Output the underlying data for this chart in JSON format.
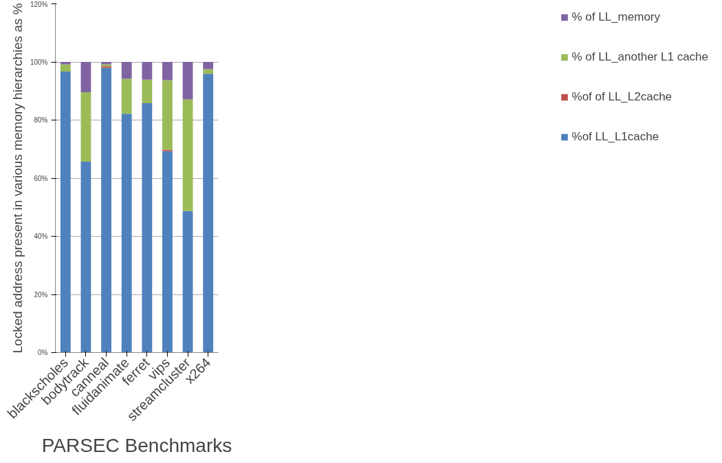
{
  "chart_data": {
    "type": "bar",
    "stacked": true,
    "xlabel": "PARSEC Benchmarks",
    "ylabel": "Locked address present in various memory hierarchies as %",
    "categories": [
      "blackscholes",
      "bodytrack",
      "canneal",
      "fluidanimate",
      "ferret",
      "vips",
      "streamcluster",
      "x264"
    ],
    "series": [
      {
        "name": "%of LL_L1cache",
        "color": "#4f81bd",
        "values": [
          96.7,
          65.7,
          98.0,
          82.2,
          85.8,
          69.3,
          48.7,
          95.9
        ]
      },
      {
        "name": "%of of LL_L2cache",
        "color": "#c0504d",
        "values": [
          0,
          0,
          0.5,
          0,
          0,
          0.5,
          0,
          0
        ]
      },
      {
        "name": "% of LL_another L1 cache",
        "color": "#9bbb59",
        "values": [
          2.5,
          23.9,
          0.7,
          12.0,
          8.1,
          23.9,
          38.4,
          1.6
        ]
      },
      {
        "name": "% of LL_memory",
        "color": "#8064a2",
        "values": [
          0.8,
          10.4,
          0.8,
          5.8,
          6.1,
          6.3,
          12.9,
          2.5
        ]
      }
    ],
    "ylim": [
      0,
      120
    ],
    "yticks": [
      {
        "value": 0,
        "label": "0%"
      },
      {
        "value": 20,
        "label": "20%"
      },
      {
        "value": 40,
        "label": "40%"
      },
      {
        "value": 60,
        "label": "60%"
      },
      {
        "value": 80,
        "label": "80%"
      },
      {
        "value": 100,
        "label": "100%"
      },
      {
        "value": 120,
        "label": "120%"
      }
    ],
    "grid": "y",
    "legend": "right"
  }
}
